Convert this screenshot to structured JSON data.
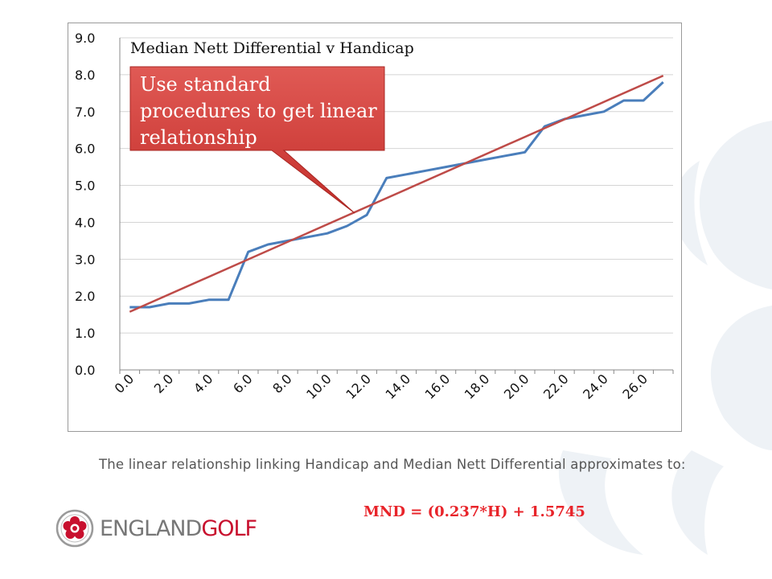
{
  "chart_data": {
    "type": "line",
    "title": "Median Nett Differential v Handicap",
    "xlabel": "",
    "ylabel": "",
    "x": [
      0,
      1,
      2,
      3,
      4,
      5,
      6,
      7,
      8,
      9,
      10,
      11,
      12,
      13,
      14,
      15,
      16,
      17,
      18,
      19,
      20,
      21,
      22,
      23,
      24,
      25,
      26,
      27
    ],
    "x_tick_labels": [
      "0.0",
      "2.0",
      "4.0",
      "6.0",
      "8.0",
      "10.0",
      "12.0",
      "14.0",
      "16.0",
      "18.0",
      "20.0",
      "22.0",
      "24.0",
      "26.0"
    ],
    "ylim": [
      0,
      9
    ],
    "y_tick_labels": [
      "0.0",
      "1.0",
      "2.0",
      "3.0",
      "4.0",
      "5.0",
      "6.0",
      "7.0",
      "8.0",
      "9.0"
    ],
    "series": [
      {
        "values": [
          1.7,
          1.7,
          1.8,
          1.8,
          1.9,
          1.9,
          3.2,
          3.4,
          3.5,
          3.6,
          3.7,
          3.9,
          4.2,
          5.2,
          5.3,
          5.4,
          5.5,
          5.6,
          5.7,
          5.8,
          5.9,
          6.6,
          6.8,
          6.9,
          7.0,
          7.3,
          7.3,
          7.8
        ],
        "color": "#4a7ebb"
      },
      {
        "type": "trendline",
        "x": [
          0,
          27
        ],
        "values": [
          1.5745,
          7.9735
        ],
        "color": "#be4b48"
      }
    ],
    "grid": "horizontal",
    "legend": "none",
    "annotation": "Use standard procedures to get linear relationship"
  },
  "callout": {
    "text": "Use standard procedures to get linear relationship",
    "color": "#d9403b"
  },
  "caption": "The linear relationship linking Handicap and Median Nett Differential approximates to:",
  "formula": "MND = (0.237*H) + 1.5745",
  "brand": {
    "part1": "ENGLAND",
    "part2": "GOLF",
    "accent_color": "#c8102e"
  }
}
